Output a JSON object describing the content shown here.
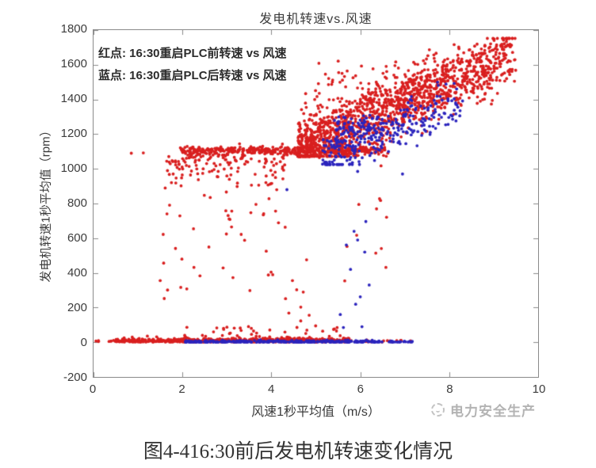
{
  "page": {
    "caption": "图4-416:30前后发电机转速变化情况",
    "watermark_text": "电力安全生产"
  },
  "chart_data": {
    "type": "scatter",
    "title": "发电机转速vs.风速",
    "xlabel": "风速1秒平均值（m/s）",
    "ylabel": "发电机转速1秒平均值（rpm）",
    "xlim": [
      0,
      10
    ],
    "ylim": [
      -200,
      1800
    ],
    "grid": false,
    "legend_position": "inside-top-left-text-annotation",
    "axis_color": "#8a8a8a",
    "annotations": [
      "红点: 16:30重启PLC前转速 vs 风速",
      "蓝点: 16:30重启PLC后转速 vs 风速"
    ],
    "xtick_values": [
      0,
      2,
      4,
      6,
      8,
      10
    ],
    "xticks": [
      "0",
      "2",
      "4",
      "6",
      "8",
      "10"
    ],
    "ytick_values": [
      1800,
      1600,
      1400,
      1200,
      1000,
      800,
      600,
      400,
      200,
      0,
      -200
    ],
    "yticks": [
      "1800",
      "1600",
      "1400",
      "1200",
      "1000",
      "800",
      "600",
      "400",
      "200",
      "0",
      "-200"
    ],
    "series": [
      {
        "name": "16:30重启PLC前转速 vs 风速",
        "color": "#d91f1f",
        "marker_radius": 1.9,
        "clusters": [
          {
            "kind": "band",
            "x0": 0.05,
            "x1": 0.5,
            "y": 4,
            "spread": 5,
            "mode": "absUp",
            "n": 8
          },
          {
            "kind": "band",
            "x0": 0.5,
            "x1": 5.75,
            "y": 1,
            "spread": 11,
            "mode": "absUp",
            "n": 640
          },
          {
            "kind": "uniform",
            "x0": 2.0,
            "x1": 5.6,
            "y0": 25,
            "y1": 95,
            "n": 32
          },
          {
            "kind": "band",
            "x0": 5.75,
            "x1": 7.2,
            "y": 1,
            "spread": 6,
            "mode": "absUp",
            "n": 20
          },
          {
            "kind": "band",
            "x0": 1.95,
            "x1": 6.62,
            "y": 1105,
            "spread": 13,
            "mode": "gauss",
            "n": 480
          },
          {
            "kind": "band",
            "x0": 1.6,
            "x1": 4.3,
            "y": 1082,
            "spread": 78,
            "mode": "absDown",
            "ymin": 640,
            "n": 120
          },
          {
            "kind": "uniform",
            "x0": 1.6,
            "x1": 4.1,
            "y0": 690,
            "y1": 960,
            "n": 26
          },
          {
            "kind": "uniform",
            "x0": 1.3,
            "x1": 5.0,
            "y0": 90,
            "y1": 690,
            "n": 36
          },
          {
            "kind": "points",
            "pts": [
              [
                0.85,
                1090
              ],
              [
                1.12,
                1092
              ],
              [
                2.1,
                86
              ],
              [
                3.3,
                82
              ]
            ]
          },
          {
            "kind": "trend",
            "x0": 4.6,
            "x1": 9.5,
            "a": 1115,
            "b": 113,
            "sigma": 88,
            "ymin": 1072,
            "ymax": 1752,
            "xpow": 1.35,
            "n": 1500
          },
          {
            "kind": "uniform",
            "x0": 4.9,
            "x1": 6.6,
            "y0": 1360,
            "y1": 1640,
            "n": 40
          },
          {
            "kind": "uniform",
            "x0": 5.6,
            "x1": 6.6,
            "y0": 100,
            "y1": 1040,
            "n": 12
          }
        ]
      },
      {
        "name": "16:30重启PLC后转速 vs 风速",
        "color": "#2b24bd",
        "marker_radius": 1.9,
        "clusters": [
          {
            "kind": "band",
            "x0": 2.05,
            "x1": 6.35,
            "y": 0,
            "spread": 5,
            "mode": "absUp",
            "n": 330
          },
          {
            "kind": "band",
            "x0": 6.35,
            "x1": 7.25,
            "y": 1,
            "spread": 3,
            "mode": "absUp",
            "n": 30
          },
          {
            "kind": "trend",
            "x0": 5.15,
            "x1": 8.35,
            "a": 1070,
            "b": 100,
            "sigma": 65,
            "ymin": 1025,
            "ymax": 1560,
            "xpow": 1.2,
            "n": 265
          },
          {
            "kind": "uniform",
            "x0": 5.45,
            "x1": 6.5,
            "y0": 1130,
            "y1": 1310,
            "n": 75
          },
          {
            "kind": "points",
            "pts": [
              [
                5.55,
                160
              ],
              [
                5.62,
                85
              ],
              [
                5.78,
                420
              ],
              [
                5.86,
                640
              ],
              [
                6.0,
                262
              ],
              [
                5.94,
                985
              ],
              [
                6.1,
                520
              ],
              [
                5.7,
                1048
              ],
              [
                6.2,
                330
              ],
              [
                4.35,
                880
              ],
              [
                6.95,
                970
              ]
            ]
          },
          {
            "kind": "uniform",
            "x0": 5.5,
            "x1": 6.3,
            "y0": 80,
            "y1": 1000,
            "n": 5
          }
        ]
      }
    ]
  }
}
